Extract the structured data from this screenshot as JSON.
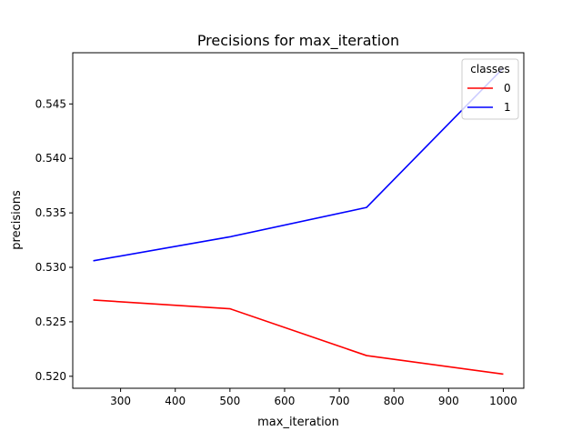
{
  "chart_data": {
    "type": "line",
    "title": "Precisions for max_iteration",
    "xlabel": "max_iteration",
    "ylabel": "precisions",
    "x": [
      250,
      500,
      750,
      1000
    ],
    "series": [
      {
        "name": "0",
        "color": "#ff0000",
        "values": [
          0.527,
          0.5262,
          0.5219,
          0.5202
        ]
      },
      {
        "name": "1",
        "color": "#0000ff",
        "values": [
          0.5306,
          0.5328,
          0.5355,
          0.5483
        ]
      }
    ],
    "xlim": [
      212.5,
      1037.5
    ],
    "ylim": [
      0.5189,
      0.5497
    ],
    "xticks": [
      300,
      400,
      500,
      600,
      700,
      800,
      900,
      1000
    ],
    "yticks": [
      0.52,
      0.525,
      0.53,
      0.535,
      0.54,
      0.545
    ],
    "ytick_labels": [
      "0.520",
      "0.525",
      "0.530",
      "0.535",
      "0.540",
      "0.545"
    ],
    "grid": false,
    "legend": {
      "title": "classes",
      "placement": "top-right"
    }
  }
}
